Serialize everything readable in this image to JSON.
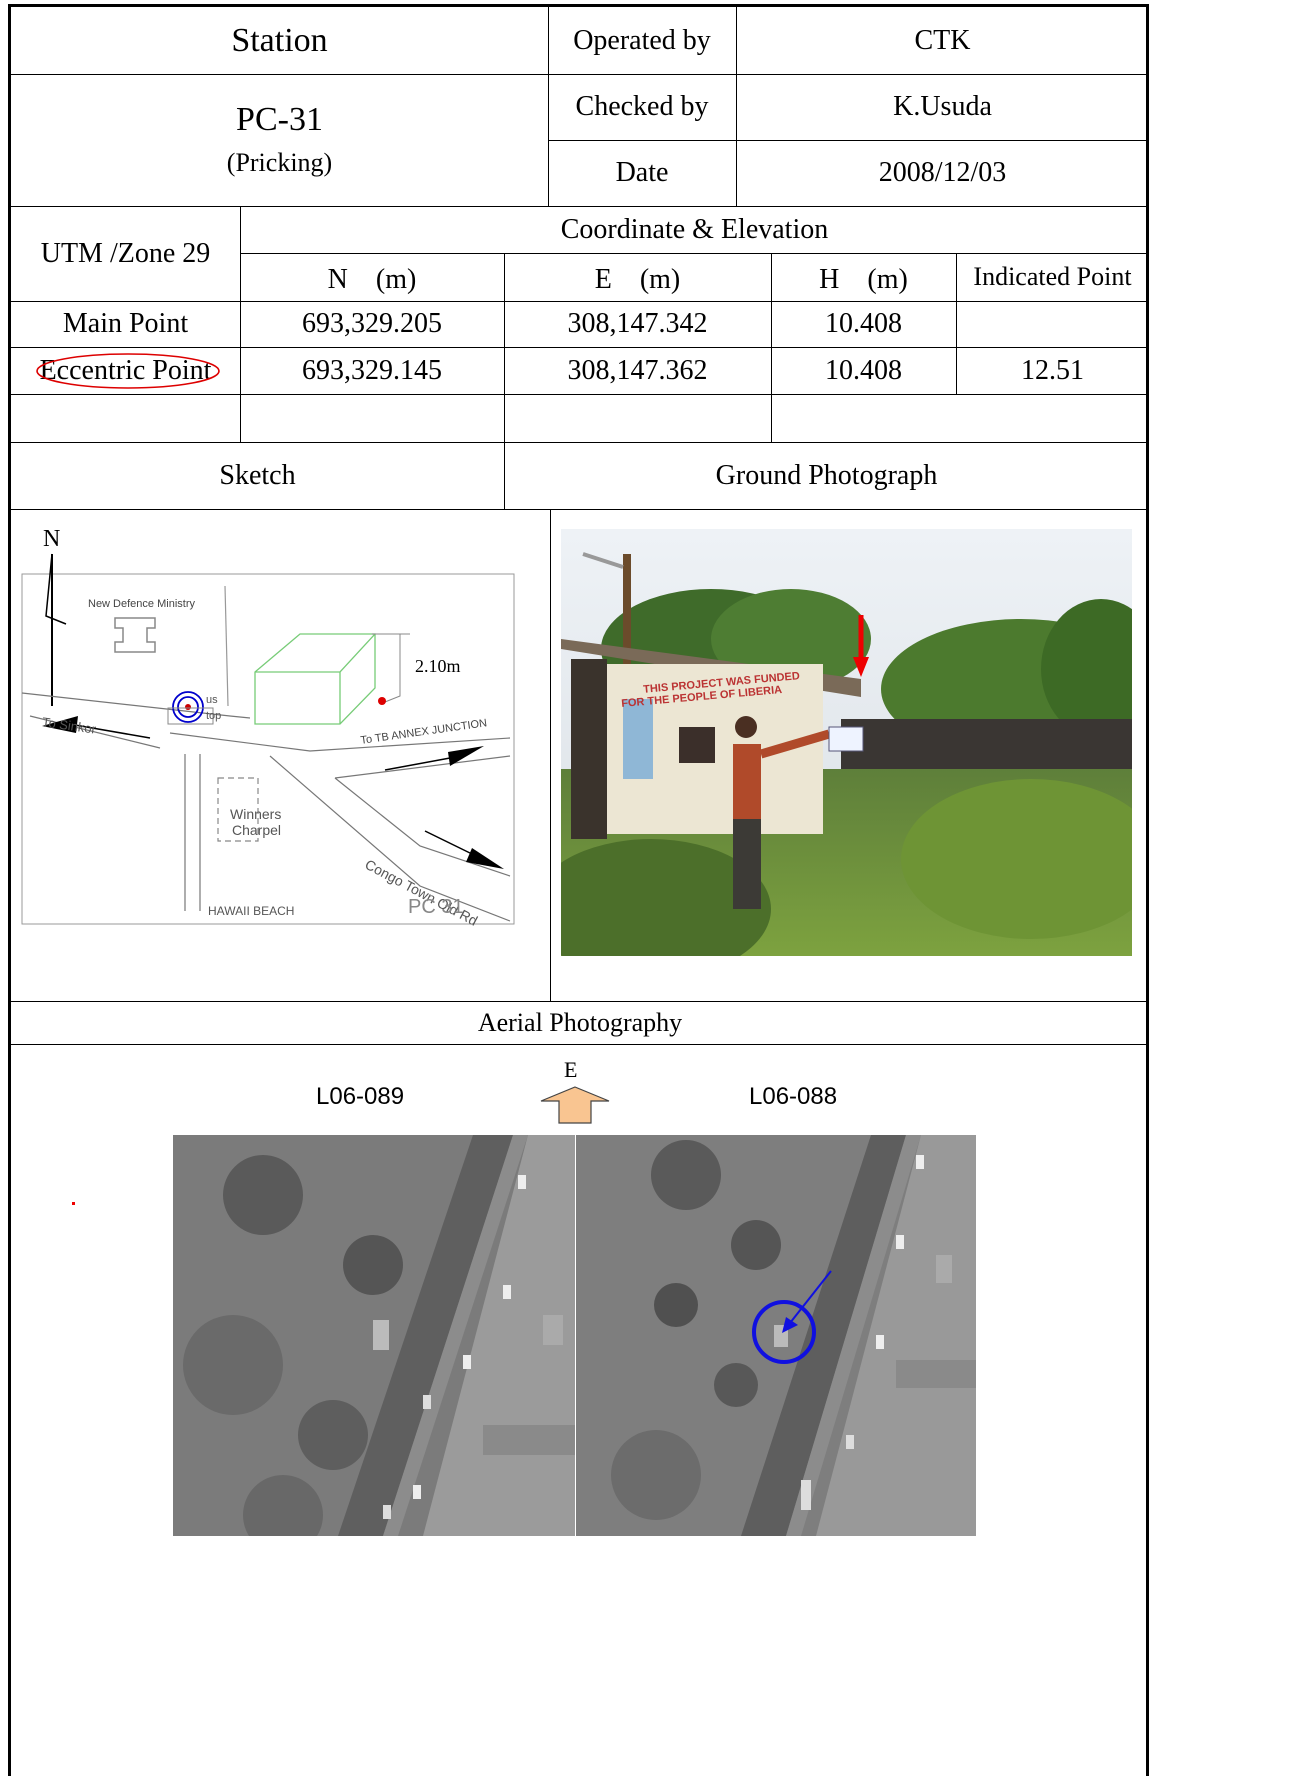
{
  "header": {
    "station_label": "Station",
    "operated_by_label": "Operated by",
    "operated_by_value": "CTK",
    "station_id": "PC-31",
    "station_note": "(Pricking)",
    "checked_by_label": "Checked by",
    "checked_by_value": "K.Usuda",
    "date_label": "Date",
    "date_value": "2008/12/03"
  },
  "coordinates": {
    "system_label": "UTM /Zone 29",
    "group_label": "Coordinate & Elevation",
    "columns": [
      "N　(m)",
      "E　(m)",
      "H　(m)",
      "Indicated Point"
    ],
    "rows": [
      {
        "name": "Main Point",
        "n": "693,329.205",
        "e": "308,147.342",
        "h": "10.408",
        "indicated": ""
      },
      {
        "name": "Eccentric Point",
        "n": "693,329.145",
        "e": "308,147.362",
        "h": "10.408",
        "indicated": "12.51"
      }
    ]
  },
  "sections": {
    "sketch_label": "Sketch",
    "ground_photo_label": "Ground Photograph",
    "aerial_label": "Aerial Photography"
  },
  "sketch": {
    "north": "N",
    "new_defence": "New Defence Ministry",
    "height_label": "2.10m",
    "to_sinkor": "To Sinkor",
    "to_tb": "To TB ANNEX JUNCTION",
    "bus_stop_1": "us",
    "bus_stop_2": "top",
    "winners_1": "Winners",
    "winners_2": "Charpel",
    "congo": "Congo Town Old Rd",
    "hawaii": "HAWAII BEACH",
    "pc_label": "PC  31"
  },
  "photo": {
    "sign_line1": "THIS PROJECT WAS FUNDED",
    "sign_line2": "FOR THE PEOPLE OF LIBERIA"
  },
  "aerial": {
    "left_label": "L06-089",
    "right_label": "L06-088",
    "direction": "E"
  }
}
